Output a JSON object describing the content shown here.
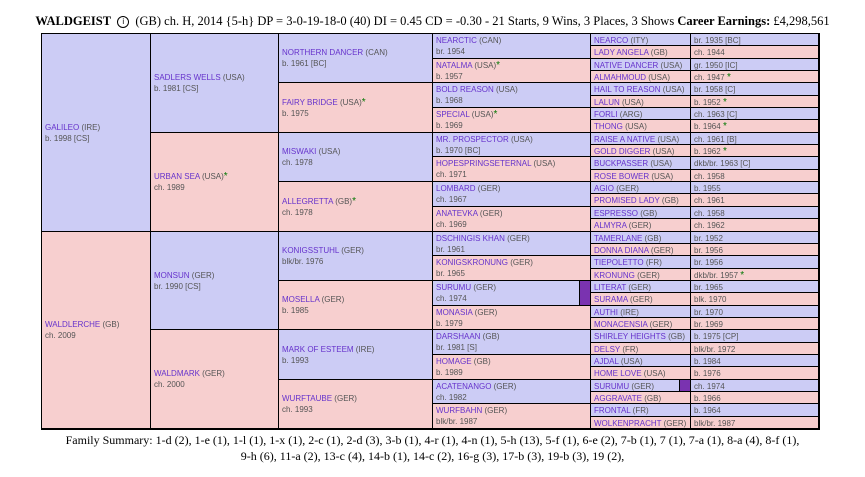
{
  "header": {
    "name": "WALDGEIST",
    "info_icon": "i",
    "details": "(GB) ch. H, 2014 {5-h} DP = 3-0-19-18-0 (40) DI = 0.45  CD = -0.30 - 21 Starts, 9 Wins, 3 Places, 3 Shows",
    "earnings_label": "Career Earnings:",
    "earnings_value": "£4,298,561"
  },
  "gen1": [
    {
      "name": "GALILEO",
      "origin": "(IRE)",
      "sub": "b. 1998 [CS]",
      "sex": "m",
      "star": ""
    },
    {
      "name": "WALDLERCHE",
      "origin": "(GB)",
      "sub": "ch. 2009",
      "sex": "f",
      "star": ""
    }
  ],
  "gen2": [
    {
      "name": "SADLERS WELLS",
      "origin": "(USA)",
      "sub": "b. 1981 [CS]",
      "sex": "m",
      "star": ""
    },
    {
      "name": "URBAN SEA",
      "origin": "(USA)",
      "sub": "ch. 1989",
      "sex": "f",
      "star": "*"
    },
    {
      "name": "MONSUN",
      "origin": "(GER)",
      "sub": "br. 1990 [CS]",
      "sex": "m",
      "star": ""
    },
    {
      "name": "WALDMARK",
      "origin": "(GER)",
      "sub": "ch. 2000",
      "sex": "f",
      "star": ""
    }
  ],
  "gen3": [
    {
      "name": "NORTHERN DANCER",
      "origin": "(CAN)",
      "sub": "b. 1961 [BC]",
      "sex": "m",
      "star": ""
    },
    {
      "name": "FAIRY BRIDGE",
      "origin": "(USA)",
      "sub": "b. 1975",
      "sex": "f",
      "star": "*"
    },
    {
      "name": "MISWAKI",
      "origin": "(USA)",
      "sub": "ch. 1978",
      "sex": "m",
      "star": ""
    },
    {
      "name": "ALLEGRETTA",
      "origin": "(GB)",
      "sub": "ch. 1978",
      "sex": "f",
      "star": "*"
    },
    {
      "name": "KONIGSSTUHL",
      "origin": "(GER)",
      "sub": "blk/br. 1976",
      "sex": "m",
      "star": ""
    },
    {
      "name": "MOSELLA",
      "origin": "(GER)",
      "sub": "b. 1985",
      "sex": "f",
      "star": ""
    },
    {
      "name": "MARK OF ESTEEM",
      "origin": "(IRE)",
      "sub": "b. 1993",
      "sex": "m",
      "star": ""
    },
    {
      "name": "WURFTAUBE",
      "origin": "(GER)",
      "sub": "ch. 1993",
      "sex": "f",
      "star": ""
    }
  ],
  "gen4": [
    {
      "name": "NEARCTIC",
      "origin": "(CAN)",
      "sub": "br. 1954",
      "sex": "m",
      "star": ""
    },
    {
      "name": "NATALMA",
      "origin": "(USA)",
      "sub": "b. 1957",
      "sex": "f",
      "star": "*"
    },
    {
      "name": "BOLD REASON",
      "origin": "(USA)",
      "sub": "b. 1968",
      "sex": "m",
      "star": ""
    },
    {
      "name": "SPECIAL",
      "origin": "(USA)",
      "sub": "b. 1969",
      "sex": "f",
      "star": "*"
    },
    {
      "name": "MR. PROSPECTOR",
      "origin": "(USA)",
      "sub": "b. 1970 [BC]",
      "sex": "m",
      "star": ""
    },
    {
      "name": "HOPESPRINGSETERNAL",
      "origin": "(USA)",
      "sub": "ch. 1971",
      "sex": "f",
      "star": ""
    },
    {
      "name": "LOMBARD",
      "origin": "(GER)",
      "sub": "ch. 1967",
      "sex": "m",
      "star": ""
    },
    {
      "name": "ANATEVKA",
      "origin": "(GER)",
      "sub": "ch. 1969",
      "sex": "f",
      "star": ""
    },
    {
      "name": "DSCHINGIS KHAN",
      "origin": "(GER)",
      "sub": "br. 1961",
      "sex": "m",
      "star": ""
    },
    {
      "name": "KONIGSKRONUNG",
      "origin": "(GER)",
      "sub": "br. 1965",
      "sex": "f",
      "star": ""
    },
    {
      "name": "SURUMU",
      "origin": "(GER)",
      "sub": "ch. 1974",
      "sex": "m",
      "star": "",
      "marker": true
    },
    {
      "name": "MONASIA",
      "origin": "(GER)",
      "sub": "b. 1979",
      "sex": "f",
      "star": ""
    },
    {
      "name": "DARSHAAN",
      "origin": "(GB)",
      "sub": "br. 1981 [S]",
      "sex": "m",
      "star": ""
    },
    {
      "name": "HOMAGE",
      "origin": "(GB)",
      "sub": "b. 1989",
      "sex": "f",
      "star": ""
    },
    {
      "name": "ACATENANGO",
      "origin": "(GER)",
      "sub": "ch. 1982",
      "sex": "m",
      "star": ""
    },
    {
      "name": "WURFBAHN",
      "origin": "(GER)",
      "sub": "blk/br. 1987",
      "sex": "f",
      "star": ""
    }
  ],
  "gen5": [
    {
      "name": "NEARCO",
      "origin": "(ITY)",
      "sub": "br. 1935 [BC]",
      "sex": "m",
      "star": ""
    },
    {
      "name": "LADY ANGELA",
      "origin": "(GB)",
      "sub": "ch. 1944",
      "sex": "f",
      "star": ""
    },
    {
      "name": "NATIVE DANCER",
      "origin": "(USA)",
      "sub": "gr. 1950 [IC]",
      "sex": "m",
      "star": ""
    },
    {
      "name": "ALMAHMOUD",
      "origin": "(USA)",
      "sub": "ch. 1947",
      "sex": "f",
      "star": "*"
    },
    {
      "name": "HAIL TO REASON",
      "origin": "(USA)",
      "sub": "br. 1958 [C]",
      "sex": "m",
      "star": ""
    },
    {
      "name": "LALUN",
      "origin": "(USA)",
      "sub": "b. 1952",
      "sex": "f",
      "star": "*"
    },
    {
      "name": "FORLI",
      "origin": "(ARG)",
      "sub": "ch. 1963 [C]",
      "sex": "m",
      "star": ""
    },
    {
      "name": "THONG",
      "origin": "(USA)",
      "sub": "b. 1964",
      "sex": "f",
      "star": "*"
    },
    {
      "name": "RAISE A NATIVE",
      "origin": "(USA)",
      "sub": "ch. 1961 [B]",
      "sex": "m",
      "star": ""
    },
    {
      "name": "GOLD DIGGER",
      "origin": "(USA)",
      "sub": "b. 1962",
      "sex": "f",
      "star": "*"
    },
    {
      "name": "BUCKPASSER",
      "origin": "(USA)",
      "sub": "dkb/br. 1963 [C]",
      "sex": "m",
      "star": ""
    },
    {
      "name": "ROSE BOWER",
      "origin": "(USA)",
      "sub": "ch. 1958",
      "sex": "f",
      "star": ""
    },
    {
      "name": "AGIO",
      "origin": "(GER)",
      "sub": "b. 1955",
      "sex": "m",
      "star": ""
    },
    {
      "name": "PROMISED LADY",
      "origin": "(GB)",
      "sub": "ch. 1961",
      "sex": "f",
      "star": ""
    },
    {
      "name": "ESPRESSO",
      "origin": "(GB)",
      "sub": "ch. 1958",
      "sex": "m",
      "star": ""
    },
    {
      "name": "ALMYRA",
      "origin": "(GER)",
      "sub": "ch. 1962",
      "sex": "f",
      "star": ""
    },
    {
      "name": "TAMERLANE",
      "origin": "(GB)",
      "sub": "br. 1952",
      "sex": "m",
      "star": ""
    },
    {
      "name": "DONNA DIANA",
      "origin": "(GER)",
      "sub": "br. 1956",
      "sex": "f",
      "star": ""
    },
    {
      "name": "TIEPOLETTO",
      "origin": "(FR)",
      "sub": "br. 1956",
      "sex": "m",
      "star": ""
    },
    {
      "name": "KRONUNG",
      "origin": "(GER)",
      "sub": "dkb/br. 1957",
      "sex": "f",
      "star": "*"
    },
    {
      "name": "LITERAT",
      "origin": "(GER)",
      "sub": "br. 1965",
      "sex": "m",
      "star": ""
    },
    {
      "name": "SURAMA",
      "origin": "(GER)",
      "sub": "blk. 1970",
      "sex": "f",
      "star": ""
    },
    {
      "name": "AUTHI",
      "origin": "(IRE)",
      "sub": "br. 1970",
      "sex": "m",
      "star": ""
    },
    {
      "name": "MONACENSIA",
      "origin": "(GER)",
      "sub": "br. 1969",
      "sex": "f",
      "star": ""
    },
    {
      "name": "SHIRLEY HEIGHTS",
      "origin": "(GB)",
      "sub": "b. 1975 [CP]",
      "sex": "m",
      "star": ""
    },
    {
      "name": "DELSY",
      "origin": "(FR)",
      "sub": "blk/br. 1972",
      "sex": "f",
      "star": ""
    },
    {
      "name": "AJDAL",
      "origin": "(USA)",
      "sub": "b. 1984",
      "sex": "m",
      "star": ""
    },
    {
      "name": "HOME LOVE",
      "origin": "(USA)",
      "sub": "b. 1976",
      "sex": "f",
      "star": ""
    },
    {
      "name": "SURUMU",
      "origin": "(GER)",
      "sub": "ch. 1974",
      "sex": "m",
      "star": "",
      "marker": true
    },
    {
      "name": "AGGRAVATE",
      "origin": "(GB)",
      "sub": "b. 1966",
      "sex": "f",
      "star": ""
    },
    {
      "name": "FRONTAL",
      "origin": "(FR)",
      "sub": "b. 1964",
      "sex": "m",
      "star": ""
    },
    {
      "name": "WOLKENPRACHT",
      "origin": "(GER)",
      "sub": "blk/br. 1987",
      "sex": "f",
      "star": ""
    }
  ],
  "footer": {
    "line1": "Family Summary: 1-d (2), 1-e (1), 1-l (1), 1-x (1), 2-c (1), 2-d (3), 3-b (1), 4-r (1), 4-n (1), 5-h (13), 5-f (1), 6-e (2), 7-b (1), 7 (1), 7-a (1), 8-a (4), 8-f (1),",
    "line2": "9-h (6), 11-a (2), 13-c (4), 14-b (1), 14-c (2), 16-g (3), 17-b (3), 19-b (3), 19 (2),"
  }
}
